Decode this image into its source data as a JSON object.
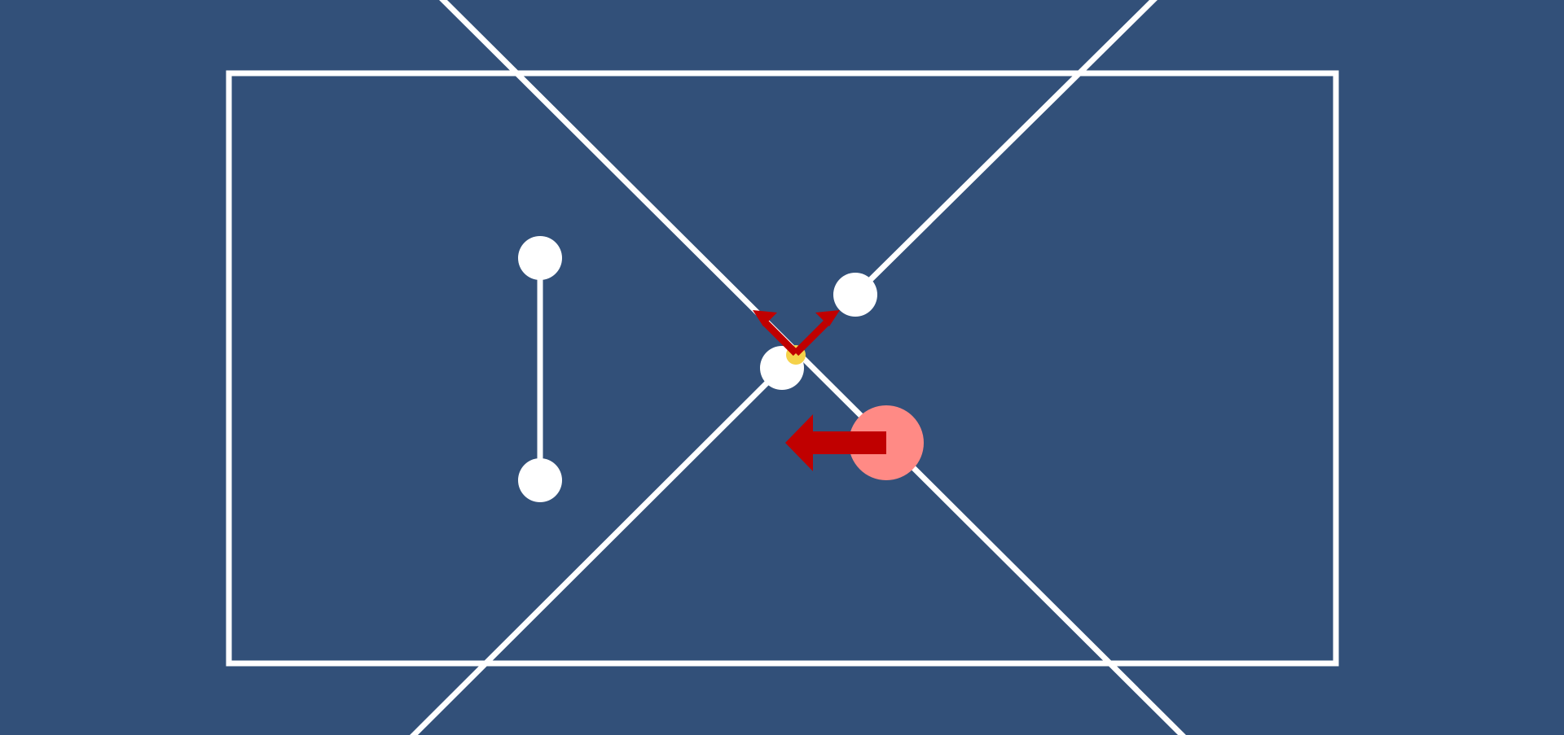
{
  "scene": {
    "background_color": "#325079",
    "line_color": "#ffffff",
    "node_color": "#ffffff",
    "accent_color": "#c00000",
    "player_color": "#ff8a85",
    "highlight_color": "#f5d24a"
  },
  "arrows": [
    {
      "name": "move-left-arrow",
      "direction": "left"
    },
    {
      "name": "diagonal-up-left-arrow",
      "direction": "up-left"
    },
    {
      "name": "diagonal-up-right-arrow",
      "direction": "up-right"
    }
  ]
}
